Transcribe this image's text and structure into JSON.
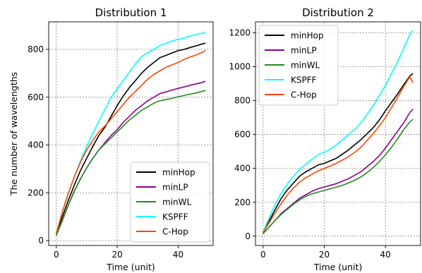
{
  "chart_data": [
    {
      "type": "line",
      "title": "Distribution 1",
      "xlabel": "Time (unit)",
      "ylabel": "The number of wavelengths",
      "xlim": [
        -2.5,
        51.5
      ],
      "ylim": [
        -20,
        915
      ],
      "xticks": [
        0,
        20,
        40
      ],
      "yticks": [
        0,
        200,
        400,
        600,
        800
      ],
      "grid": true,
      "legend_position": "lower-right",
      "x": [
        0,
        2,
        4,
        6,
        8,
        10,
        12,
        14,
        16,
        18,
        20,
        22,
        24,
        26,
        28,
        30,
        32,
        34,
        36,
        38,
        40,
        42,
        44,
        46,
        48,
        49
      ],
      "series": [
        {
          "name": "minHop",
          "color": "#000000",
          "values": [
            25,
            100,
            170,
            235,
            295,
            345,
            395,
            440,
            475,
            520,
            565,
            605,
            640,
            670,
            700,
            725,
            745,
            765,
            775,
            785,
            795,
            800,
            808,
            815,
            823,
            826
          ]
        },
        {
          "name": "minLP",
          "color": "#8b008b",
          "values": [
            22,
            85,
            150,
            210,
            260,
            305,
            345,
            380,
            410,
            440,
            465,
            495,
            520,
            545,
            565,
            585,
            600,
            615,
            622,
            630,
            637,
            643,
            650,
            656,
            662,
            667
          ]
        },
        {
          "name": "minWL",
          "color": "#228b22",
          "values": [
            22,
            85,
            150,
            210,
            260,
            305,
            345,
            380,
            405,
            430,
            455,
            480,
            505,
            525,
            545,
            560,
            575,
            585,
            590,
            595,
            602,
            607,
            613,
            618,
            625,
            628
          ]
        },
        {
          "name": "KSPFF",
          "color": "#00ffff",
          "values": [
            30,
            120,
            200,
            270,
            335,
            395,
            450,
            500,
            550,
            600,
            635,
            670,
            705,
            740,
            770,
            785,
            800,
            815,
            825,
            835,
            842,
            848,
            856,
            862,
            868,
            872
          ]
        },
        {
          "name": "C-Hop",
          "color": "#ff4500",
          "values": [
            32,
            120,
            200,
            270,
            330,
            380,
            420,
            455,
            480,
            510,
            540,
            570,
            600,
            625,
            650,
            675,
            695,
            710,
            725,
            735,
            745,
            758,
            768,
            777,
            788,
            795
          ]
        }
      ]
    },
    {
      "type": "line",
      "title": "Distribution 2",
      "xlabel": "Time (unit)",
      "ylabel": "",
      "xlim": [
        -2.5,
        51.5
      ],
      "ylim": [
        -55,
        1265
      ],
      "xticks": [
        0,
        20,
        40
      ],
      "yticks": [
        0,
        200,
        400,
        600,
        800,
        1000,
        1200
      ],
      "grid": true,
      "legend_position": "upper-left",
      "x": [
        0,
        2,
        4,
        6,
        8,
        10,
        12,
        14,
        16,
        18,
        20,
        22,
        24,
        26,
        28,
        30,
        32,
        34,
        36,
        38,
        40,
        42,
        44,
        46,
        48,
        49
      ],
      "series": [
        {
          "name": "minHop",
          "color": "#000000",
          "values": [
            20,
            90,
            160,
            225,
            275,
            315,
            355,
            380,
            400,
            420,
            430,
            445,
            460,
            485,
            510,
            540,
            570,
            605,
            640,
            685,
            740,
            790,
            840,
            895,
            945,
            960
          ]
        },
        {
          "name": "minLP",
          "color": "#8b008b",
          "values": [
            15,
            55,
            95,
            135,
            165,
            195,
            225,
            245,
            265,
            280,
            290,
            300,
            310,
            325,
            340,
            360,
            380,
            410,
            440,
            475,
            520,
            570,
            620,
            670,
            730,
            750
          ]
        },
        {
          "name": "minWL",
          "color": "#228b22",
          "values": [
            15,
            55,
            95,
            130,
            160,
            190,
            215,
            235,
            250,
            260,
            270,
            280,
            290,
            300,
            315,
            330,
            350,
            375,
            405,
            440,
            480,
            525,
            575,
            630,
            675,
            690
          ]
        },
        {
          "name": "KSPFF",
          "color": "#00ffff",
          "values": [
            25,
            110,
            190,
            255,
            310,
            355,
            395,
            425,
            455,
            480,
            495,
            515,
            540,
            570,
            600,
            630,
            670,
            720,
            770,
            830,
            890,
            960,
            1030,
            1110,
            1190,
            1215
          ]
        },
        {
          "name": "C-Hop",
          "color": "#ff4500",
          "values": [
            22,
            80,
            140,
            195,
            245,
            285,
            320,
            345,
            365,
            385,
            400,
            415,
            430,
            450,
            470,
            495,
            525,
            565,
            605,
            650,
            700,
            760,
            820,
            885,
            940,
            905
          ]
        }
      ]
    }
  ]
}
